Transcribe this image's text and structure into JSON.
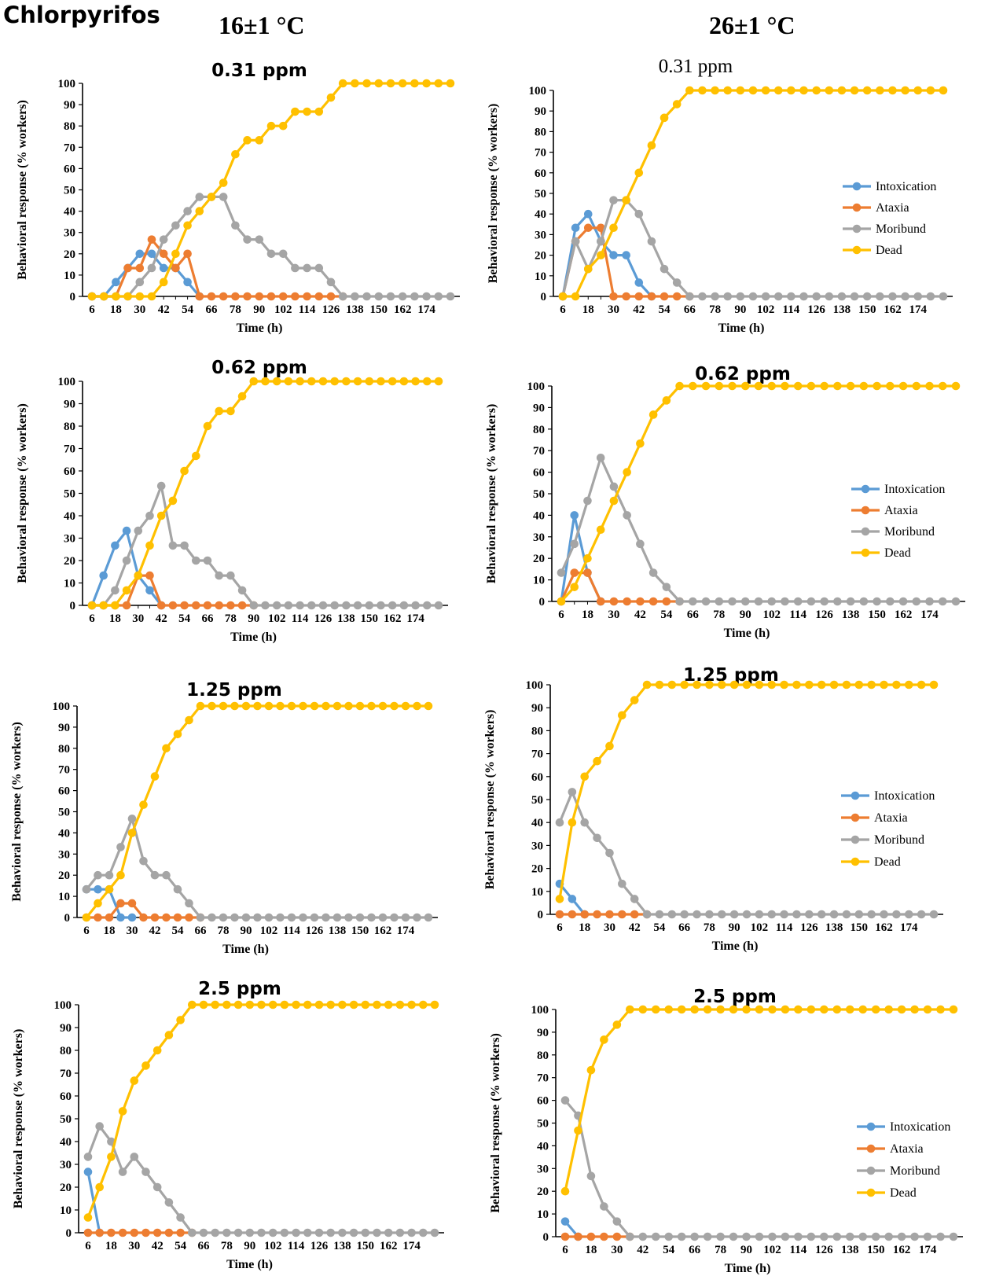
{
  "figure": {
    "title": "Chlorpyrifos",
    "columns": [
      "16±1 °C",
      "26±1 °C"
    ]
  },
  "colors": {
    "Intoxication": "#5b9bd5",
    "Ataxia": "#ed7d31",
    "Moribund": "#a5a5a5",
    "Dead": "#ffc000"
  },
  "chart_data": [
    {
      "type": "line",
      "title": "0.31 ppm",
      "temperature": "16±1 °C",
      "xlabel": "Time (h)",
      "ylabel": "Behavioral response (% workers)",
      "ylim": [
        0,
        100
      ],
      "yticks": [
        0,
        10,
        20,
        30,
        40,
        50,
        60,
        70,
        80,
        90,
        100
      ],
      "xticks": [
        "6",
        "18",
        "30",
        "42",
        "54",
        "66",
        "78",
        "90",
        "102",
        "114",
        "126",
        "138",
        "150",
        "162",
        "174"
      ],
      "legend": [],
      "series": [
        {
          "name": "Intoxication",
          "values": [
            0,
            0,
            6.7,
            13.3,
            20,
            20,
            13.3,
            13.3,
            6.7,
            0
          ]
        },
        {
          "name": "Ataxia",
          "values": [
            0,
            0,
            0,
            13.3,
            13.3,
            26.7,
            20,
            13.3,
            20,
            0,
            0,
            0,
            0,
            0,
            0,
            0,
            0,
            0,
            0,
            0,
            0,
            0
          ]
        },
        {
          "name": "Moribund",
          "values": [
            0,
            0,
            0,
            0,
            6.7,
            13.3,
            26.7,
            33.3,
            40,
            46.7,
            46.7,
            46.7,
            33.3,
            26.7,
            26.7,
            20,
            20,
            13.3,
            13.3,
            13.3,
            6.7,
            0,
            0,
            0,
            0,
            0,
            0,
            0,
            0,
            0,
            0
          ]
        },
        {
          "name": "Dead",
          "values": [
            0,
            0,
            0,
            0,
            0,
            0,
            6.7,
            20,
            33.3,
            40,
            46.7,
            53.3,
            66.7,
            73.3,
            73.3,
            80,
            80,
            86.7,
            86.7,
            86.7,
            93.3,
            100,
            100,
            100,
            100,
            100,
            100,
            100,
            100,
            100,
            100
          ]
        }
      ]
    },
    {
      "type": "line",
      "title": "0.31 ppm",
      "temperature": "26±1 °C",
      "xlabel": "Time (h)",
      "ylabel": "Behavioral response (% workers)",
      "ylim": [
        0,
        100
      ],
      "yticks": [
        0,
        10,
        20,
        30,
        40,
        50,
        60,
        70,
        80,
        90,
        100
      ],
      "xticks": [
        "6",
        "18",
        "30",
        "42",
        "54",
        "66",
        "78",
        "90",
        "102",
        "114",
        "126",
        "138",
        "150",
        "162",
        "174"
      ],
      "legend": [
        "Intoxication",
        "Ataxia",
        "Moribund",
        "Dead"
      ],
      "series": [
        {
          "name": "Intoxication",
          "values": [
            0,
            33.3,
            40,
            26.7,
            20,
            20,
            6.7,
            0
          ]
        },
        {
          "name": "Ataxia",
          "values": [
            0,
            26.7,
            33.3,
            33.3,
            0,
            0,
            0,
            0,
            0,
            0,
            0
          ]
        },
        {
          "name": "Moribund",
          "values": [
            0,
            26.7,
            13.3,
            26.7,
            46.7,
            46.7,
            40,
            26.7,
            13.3,
            6.7,
            0,
            0,
            0,
            0,
            0,
            0,
            0,
            0,
            0,
            0,
            0,
            0,
            0,
            0,
            0,
            0,
            0,
            0,
            0,
            0,
            0
          ]
        },
        {
          "name": "Dead",
          "values": [
            0,
            0,
            13.3,
            20,
            33.3,
            46.7,
            60,
            73.3,
            86.7,
            93.3,
            100,
            100,
            100,
            100,
            100,
            100,
            100,
            100,
            100,
            100,
            100,
            100,
            100,
            100,
            100,
            100,
            100,
            100,
            100,
            100,
            100
          ]
        }
      ]
    },
    {
      "type": "line",
      "title": "0.62 ppm",
      "temperature": "16±1 °C",
      "xlabel": "Time (h)",
      "ylabel": "Behavioral response (% workers)",
      "ylim": [
        0,
        100
      ],
      "yticks": [
        0,
        10,
        20,
        30,
        40,
        50,
        60,
        70,
        80,
        90,
        100
      ],
      "xticks": [
        "6",
        "18",
        "30",
        "42",
        "54",
        "66",
        "78",
        "90",
        "102",
        "114",
        "126",
        "138",
        "150",
        "162",
        "174"
      ],
      "legend": [],
      "series": [
        {
          "name": "Intoxication",
          "values": [
            0,
            13.3,
            26.7,
            33.3,
            13.3,
            6.7,
            0
          ]
        },
        {
          "name": "Ataxia",
          "values": [
            0,
            0,
            0,
            0,
            13.3,
            13.3,
            0,
            0,
            0,
            0,
            0,
            0,
            0,
            0,
            0
          ]
        },
        {
          "name": "Moribund",
          "values": [
            0,
            0,
            6.7,
            20,
            33.3,
            40,
            53.3,
            26.7,
            26.7,
            20,
            20,
            13.3,
            13.3,
            6.7,
            0,
            0,
            0,
            0,
            0,
            0,
            0,
            0,
            0,
            0,
            0,
            0,
            0,
            0,
            0,
            0,
            0
          ]
        },
        {
          "name": "Dead",
          "values": [
            0,
            0,
            0,
            6.7,
            13.3,
            26.7,
            40,
            46.7,
            60,
            66.7,
            80,
            86.7,
            86.7,
            93.3,
            100,
            100,
            100,
            100,
            100,
            100,
            100,
            100,
            100,
            100,
            100,
            100,
            100,
            100,
            100,
            100,
            100
          ]
        }
      ]
    },
    {
      "type": "line",
      "title": "0.62 ppm",
      "temperature": "26±1 °C",
      "xlabel": "Time (h)",
      "ylabel": "Behavioral response (% workers)",
      "ylim": [
        0,
        100
      ],
      "yticks": [
        0,
        10,
        20,
        30,
        40,
        50,
        60,
        70,
        80,
        90,
        100
      ],
      "xticks": [
        "6",
        "18",
        "30",
        "42",
        "54",
        "66",
        "78",
        "90",
        "102",
        "114",
        "126",
        "138",
        "150",
        "162",
        "174"
      ],
      "legend": [
        "Intoxication",
        "Ataxia",
        "Moribund",
        "Dead"
      ],
      "series": [
        {
          "name": "Intoxication",
          "values": [
            0,
            40,
            13.3,
            0
          ]
        },
        {
          "name": "Ataxia",
          "values": [
            0,
            13.3,
            13.3,
            0,
            0,
            0,
            0,
            0,
            0,
            0
          ]
        },
        {
          "name": "Moribund",
          "values": [
            13.3,
            26.7,
            46.7,
            66.7,
            53.3,
            40,
            26.7,
            13.3,
            6.7,
            0,
            0,
            0,
            0,
            0,
            0,
            0,
            0,
            0,
            0,
            0,
            0,
            0,
            0,
            0,
            0,
            0,
            0,
            0,
            0,
            0,
            0
          ]
        },
        {
          "name": "Dead",
          "values": [
            0,
            6.7,
            20,
            33.3,
            46.7,
            60,
            73.3,
            86.7,
            93.3,
            100,
            100,
            100,
            100,
            100,
            100,
            100,
            100,
            100,
            100,
            100,
            100,
            100,
            100,
            100,
            100,
            100,
            100,
            100,
            100,
            100,
            100
          ]
        }
      ]
    },
    {
      "type": "line",
      "title": "1.25 ppm",
      "temperature": "16±1 °C",
      "xlabel": "Time (h)",
      "ylabel": "Behavioral response (% workers)",
      "ylim": [
        0,
        100
      ],
      "yticks": [
        0,
        10,
        20,
        30,
        40,
        50,
        60,
        70,
        80,
        90,
        100
      ],
      "xticks": [
        "6",
        "18",
        "30",
        "42",
        "54",
        "66",
        "78",
        "90",
        "102",
        "114",
        "126",
        "138",
        "150",
        "162",
        "174"
      ],
      "legend": [],
      "series": [
        {
          "name": "Intoxication",
          "values": [
            13.3,
            13.3,
            13.3,
            0,
            0
          ]
        },
        {
          "name": "Ataxia",
          "values": [
            0,
            0,
            0,
            6.7,
            6.7,
            0,
            0,
            0,
            0,
            0,
            0
          ]
        },
        {
          "name": "Moribund",
          "values": [
            13.3,
            20,
            20,
            33.3,
            46.7,
            26.7,
            20,
            20,
            13.3,
            6.7,
            0,
            0,
            0,
            0,
            0,
            0,
            0,
            0,
            0,
            0,
            0,
            0,
            0,
            0,
            0,
            0,
            0,
            0,
            0,
            0,
            0
          ]
        },
        {
          "name": "Dead",
          "values": [
            0,
            6.7,
            13.3,
            20,
            40,
            53.3,
            66.7,
            80,
            86.7,
            93.3,
            100,
            100,
            100,
            100,
            100,
            100,
            100,
            100,
            100,
            100,
            100,
            100,
            100,
            100,
            100,
            100,
            100,
            100,
            100,
            100,
            100
          ]
        }
      ]
    },
    {
      "type": "line",
      "title": "1.25 ppm",
      "temperature": "26±1 °C",
      "xlabel": "Time (h)",
      "ylabel": "Behavioral response (% workers)",
      "ylim": [
        0,
        100
      ],
      "yticks": [
        0,
        10,
        20,
        30,
        40,
        50,
        60,
        70,
        80,
        90,
        100
      ],
      "xticks": [
        "6",
        "18",
        "30",
        "42",
        "54",
        "66",
        "78",
        "90",
        "102",
        "114",
        "126",
        "138",
        "150",
        "162",
        "174"
      ],
      "legend": [
        "Intoxication",
        "Ataxia",
        "Moribund",
        "Dead"
      ],
      "series": [
        {
          "name": "Intoxication",
          "values": [
            13.3,
            6.7,
            0
          ]
        },
        {
          "name": "Ataxia",
          "values": [
            0,
            0,
            0,
            0,
            0,
            0,
            0,
            0
          ]
        },
        {
          "name": "Moribund",
          "values": [
            40,
            53.3,
            40,
            33.3,
            26.7,
            13.3,
            6.7,
            0,
            0,
            0,
            0,
            0,
            0,
            0,
            0,
            0,
            0,
            0,
            0,
            0,
            0,
            0,
            0,
            0,
            0,
            0,
            0,
            0,
            0,
            0,
            0
          ]
        },
        {
          "name": "Dead",
          "values": [
            6.7,
            40,
            60,
            66.7,
            73.3,
            86.7,
            93.3,
            100,
            100,
            100,
            100,
            100,
            100,
            100,
            100,
            100,
            100,
            100,
            100,
            100,
            100,
            100,
            100,
            100,
            100,
            100,
            100,
            100,
            100,
            100,
            100
          ]
        }
      ]
    },
    {
      "type": "line",
      "title": "2.5 ppm",
      "temperature": "16±1 °C",
      "xlabel": "Time (h)",
      "ylabel": "Behavioral response (% workers)",
      "ylim": [
        0,
        100
      ],
      "yticks": [
        0,
        10,
        20,
        30,
        40,
        50,
        60,
        70,
        80,
        90,
        100
      ],
      "xticks": [
        "6",
        "18",
        "30",
        "42",
        "54",
        "66",
        "78",
        "90",
        "102",
        "114",
        "126",
        "138",
        "150",
        "162",
        "174"
      ],
      "legend": [],
      "series": [
        {
          "name": "Intoxication",
          "values": [
            26.7,
            0
          ]
        },
        {
          "name": "Ataxia",
          "values": [
            0,
            0,
            0,
            0,
            0,
            0,
            0,
            0,
            0,
            0
          ]
        },
        {
          "name": "Moribund",
          "values": [
            33.3,
            46.7,
            40,
            26.7,
            33.3,
            26.7,
            20,
            13.3,
            6.7,
            0,
            0,
            0,
            0,
            0,
            0,
            0,
            0,
            0,
            0,
            0,
            0,
            0,
            0,
            0,
            0,
            0,
            0,
            0,
            0,
            0,
            0
          ]
        },
        {
          "name": "Dead",
          "values": [
            6.7,
            20,
            33.3,
            53.3,
            66.7,
            73.3,
            80,
            86.7,
            93.3,
            100,
            100,
            100,
            100,
            100,
            100,
            100,
            100,
            100,
            100,
            100,
            100,
            100,
            100,
            100,
            100,
            100,
            100,
            100,
            100,
            100,
            100
          ]
        }
      ]
    },
    {
      "type": "line",
      "title": "2.5 ppm",
      "temperature": "26±1 °C",
      "xlabel": "Time (h)",
      "ylabel": "Behavioral response (% workers)",
      "ylim": [
        0,
        100
      ],
      "yticks": [
        0,
        10,
        20,
        30,
        40,
        50,
        60,
        70,
        80,
        90,
        100
      ],
      "xticks": [
        "6",
        "18",
        "30",
        "42",
        "54",
        "66",
        "78",
        "90",
        "102",
        "114",
        "126",
        "138",
        "150",
        "162",
        "174"
      ],
      "legend": [
        "Intoxication",
        "Ataxia",
        "Moribund",
        "Dead"
      ],
      "series": [
        {
          "name": "Intoxication",
          "values": [
            6.7,
            0
          ]
        },
        {
          "name": "Ataxia",
          "values": [
            0,
            0,
            0,
            0,
            0,
            0
          ]
        },
        {
          "name": "Moribund",
          "values": [
            60,
            53.3,
            26.7,
            13.3,
            6.7,
            0,
            0,
            0,
            0,
            0,
            0,
            0,
            0,
            0,
            0,
            0,
            0,
            0,
            0,
            0,
            0,
            0,
            0,
            0,
            0,
            0,
            0,
            0,
            0,
            0,
            0
          ]
        },
        {
          "name": "Dead",
          "values": [
            20,
            46.7,
            73.3,
            86.7,
            93.3,
            100,
            100,
            100,
            100,
            100,
            100,
            100,
            100,
            100,
            100,
            100,
            100,
            100,
            100,
            100,
            100,
            100,
            100,
            100,
            100,
            100,
            100,
            100,
            100,
            100,
            100
          ]
        }
      ]
    }
  ]
}
